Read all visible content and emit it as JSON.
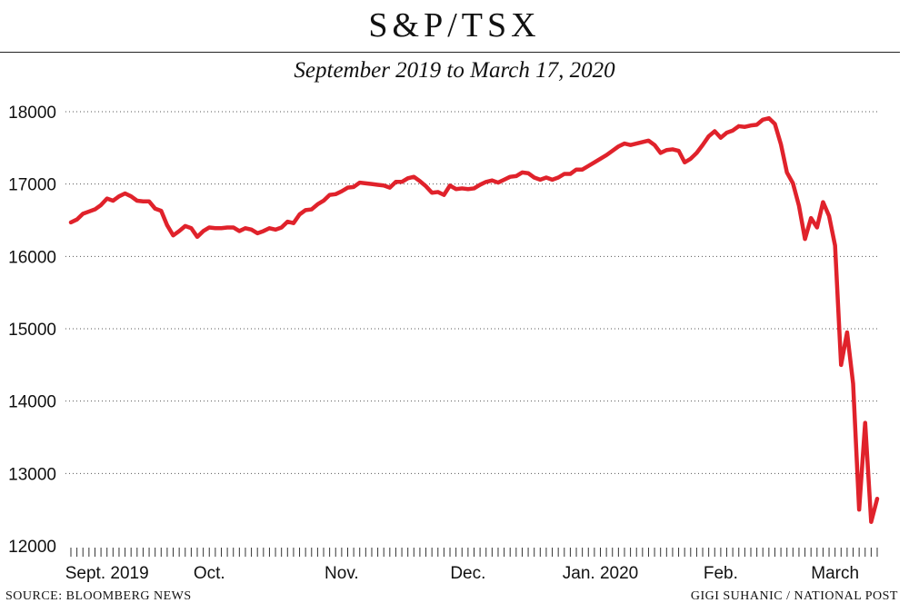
{
  "title": "S&P/TSX",
  "subtitle": "September 2019 to March 17, 2020",
  "source": "SOURCE: BLOOMBERG NEWS",
  "credit": "GIGI SUHANIC / NATIONAL POST",
  "colors": {
    "line": "#e0222b",
    "grid": "#555555",
    "text": "#111111"
  },
  "chart_data": {
    "type": "line",
    "title": "S&P/TSX",
    "subtitle": "September 2019 to March 17, 2020",
    "xlabel": "",
    "ylabel": "",
    "ylim": [
      12000,
      18000
    ],
    "yticks": [
      12000,
      13000,
      14000,
      15000,
      16000,
      17000,
      18000
    ],
    "ytick_labels": [
      "12000",
      "13000",
      "14000",
      "15000",
      "16000",
      "17000",
      "18000"
    ],
    "month_labels": [
      {
        "label": "Sept. 2019",
        "index": 6
      },
      {
        "label": "Oct.",
        "index": 23
      },
      {
        "label": "Nov.",
        "index": 45
      },
      {
        "label": "Dec.",
        "index": 66
      },
      {
        "label": "Jan. 2020",
        "index": 88
      },
      {
        "label": "Feb.",
        "index": 108
      },
      {
        "label": "March",
        "index": 127
      }
    ],
    "grid": "horizontal dotted",
    "legend": "none",
    "series": [
      {
        "values": [
          16470,
          16510,
          16590,
          16620,
          16650,
          16710,
          16800,
          16770,
          16830,
          16870,
          16830,
          16770,
          16760,
          16760,
          16660,
          16630,
          16430,
          16290,
          16350,
          16420,
          16390,
          16270,
          16350,
          16400,
          16390,
          16390,
          16400,
          16400,
          16350,
          16390,
          16370,
          16320,
          16350,
          16390,
          16370,
          16400,
          16480,
          16460,
          16580,
          16640,
          16650,
          16720,
          16770,
          16850,
          16860,
          16900,
          16950,
          16960,
          17020,
          17010,
          17000,
          16990,
          16980,
          16950,
          17030,
          17030,
          17080,
          17100,
          17040,
          16970,
          16880,
          16890,
          16850,
          16980,
          16930,
          16940,
          16930,
          16940,
          16990,
          17030,
          17050,
          17020,
          17060,
          17100,
          17110,
          17160,
          17150,
          17090,
          17060,
          17090,
          17060,
          17090,
          17140,
          17140,
          17200,
          17200,
          17250,
          17300,
          17350,
          17400,
          17460,
          17520,
          17560,
          17540,
          17560,
          17580,
          17600,
          17540,
          17430,
          17470,
          17480,
          17460,
          17300,
          17350,
          17430,
          17540,
          17660,
          17730,
          17640,
          17710,
          17740,
          17800,
          17790,
          17810,
          17820,
          17890,
          17910,
          17830,
          17550,
          17160,
          17010,
          16700,
          16240,
          16530,
          16400,
          16750,
          16560,
          16150,
          14500,
          14950,
          14240,
          12500,
          13700,
          12330,
          12650
        ]
      }
    ]
  }
}
